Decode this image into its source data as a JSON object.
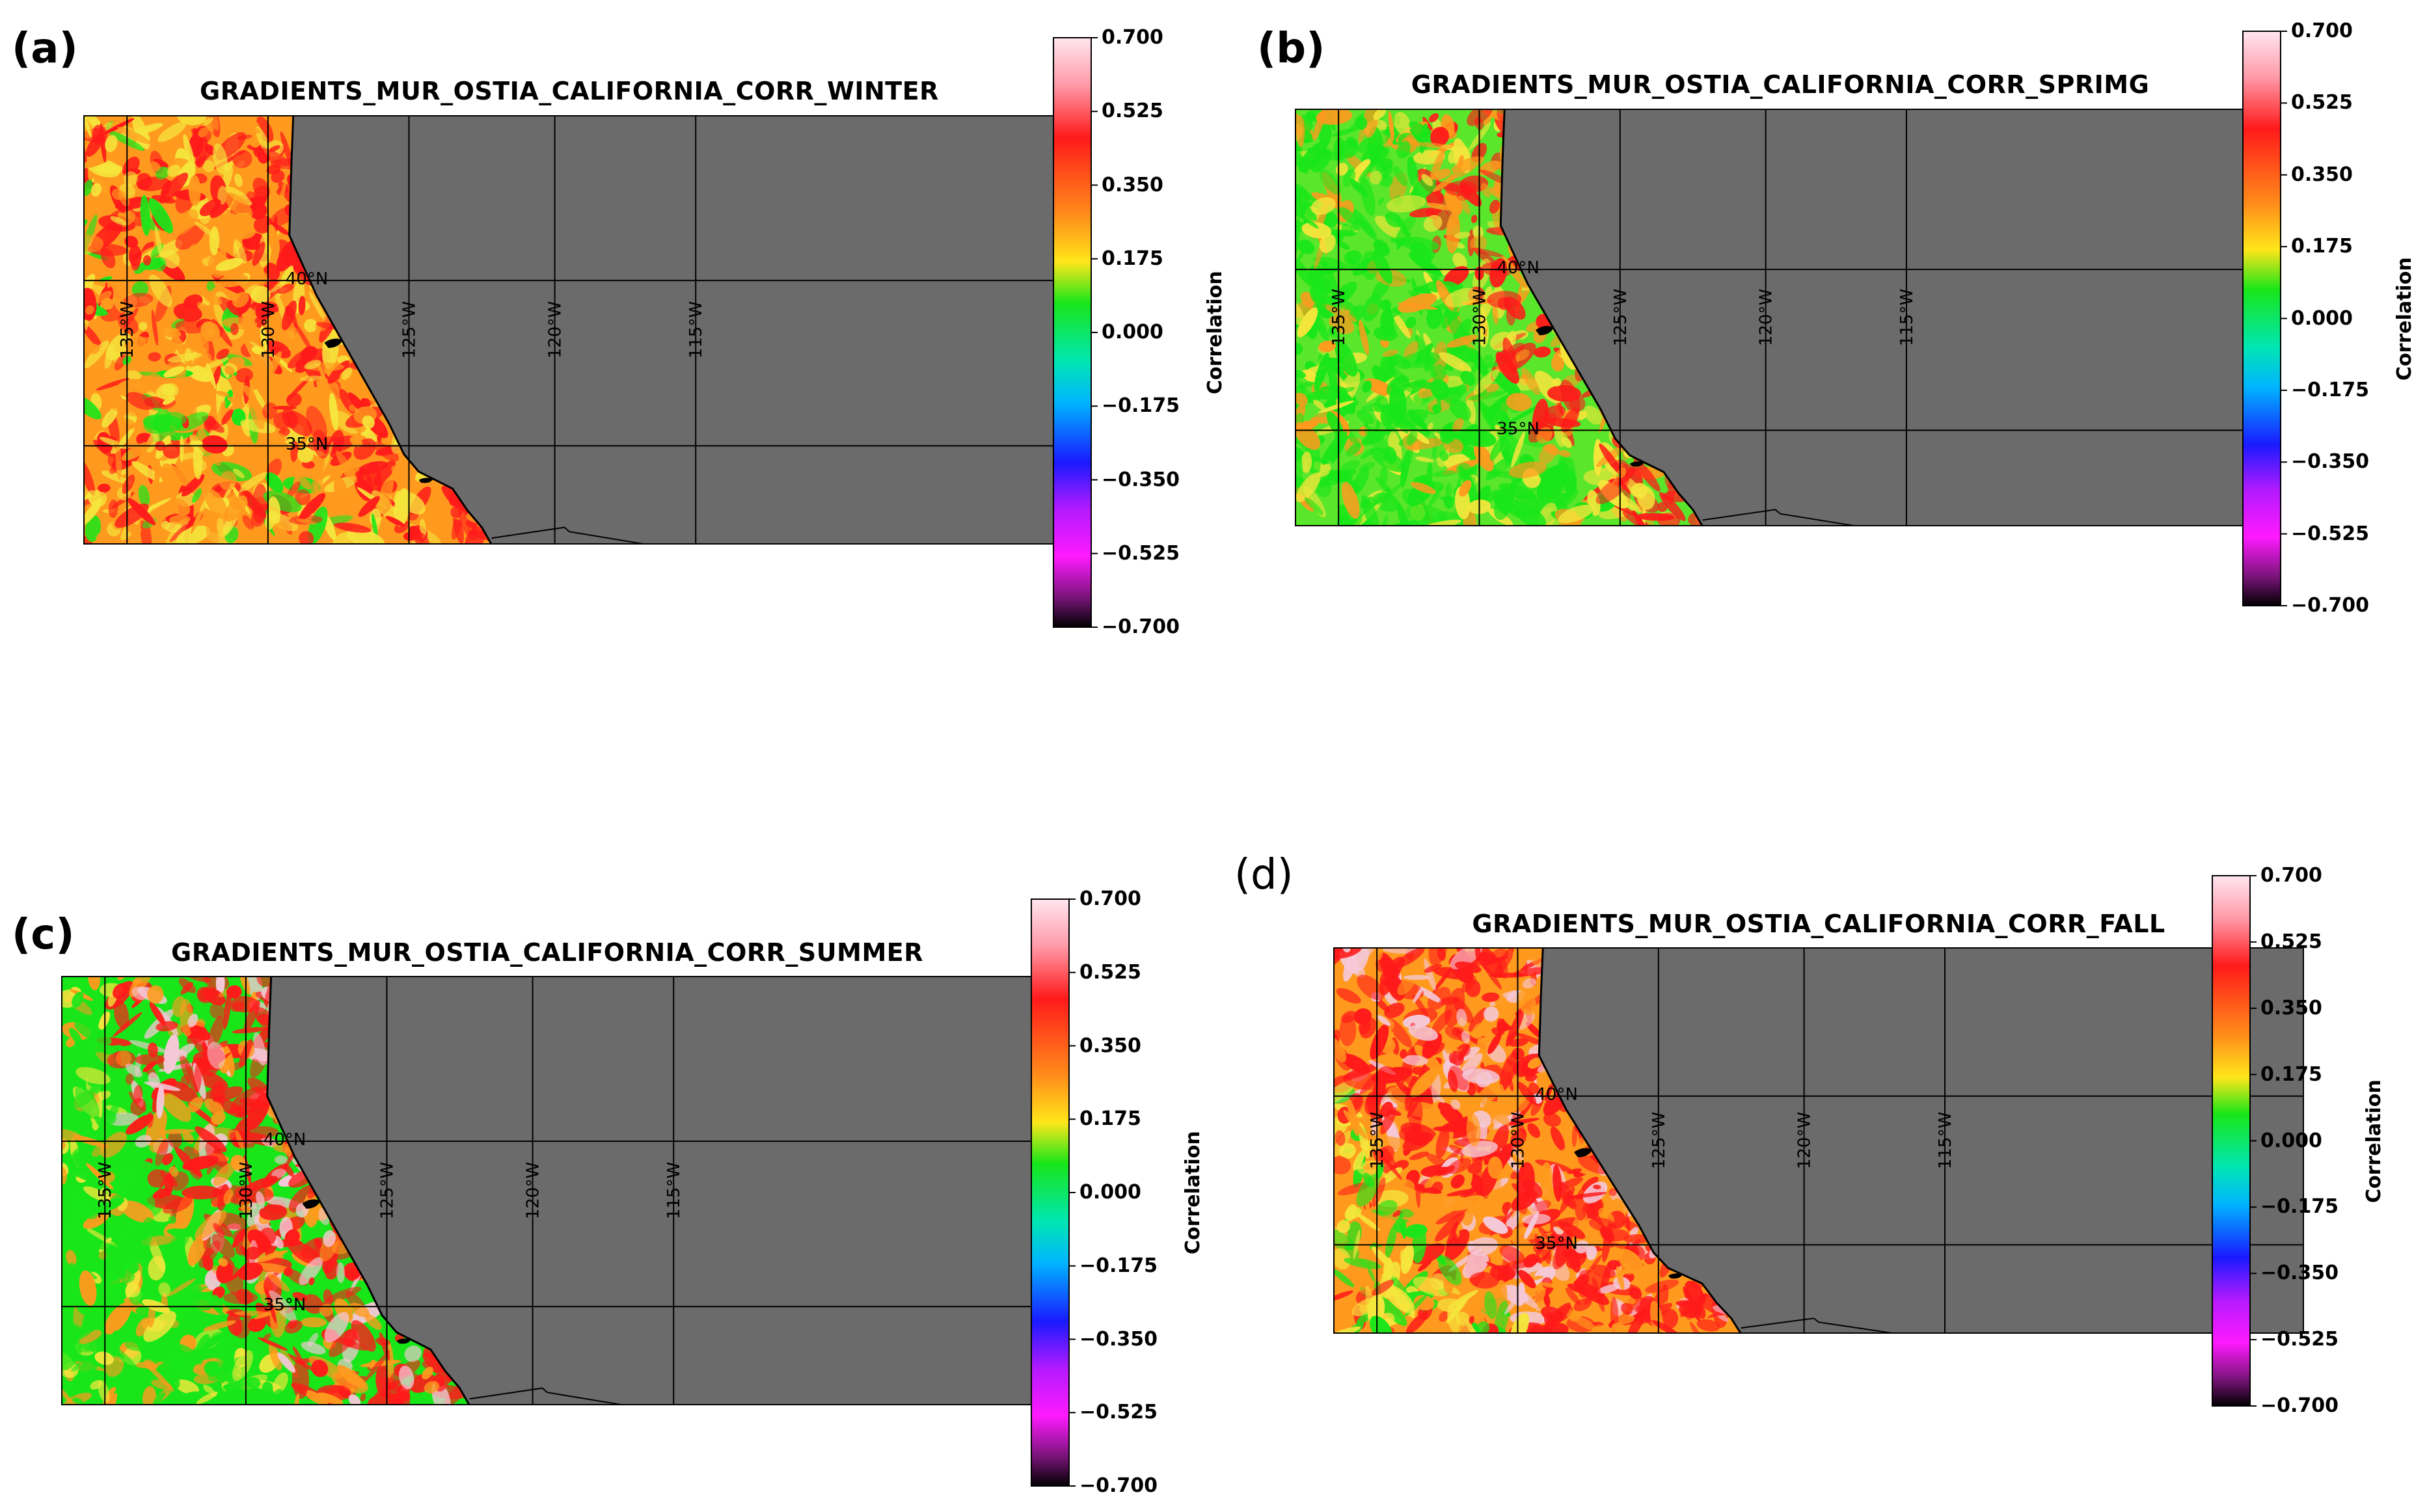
{
  "colorbar": {
    "label": "Correlation",
    "ticks": [
      "0.700",
      "0.525",
      "0.350",
      "0.175",
      "0.000",
      "−0.175",
      "−0.350",
      "−0.525",
      "−0.700"
    ],
    "vmin": -0.7,
    "vmax": 0.7
  },
  "grid_labels": {
    "lon": [
      "135°W",
      "130°W",
      "125°W",
      "120°W",
      "115°W"
    ],
    "lat": [
      "40°N",
      "35°N"
    ]
  },
  "colors": {
    "land": "#6b6b6b",
    "low_corr": "#19e619",
    "mid_corr": "#f5e63c",
    "orange_corr": "#ff9a1e",
    "high_corr": "#ff1a1a",
    "peak_corr": "#f5c8d8"
  },
  "panels": [
    {
      "id": "a",
      "letter": "(a)",
      "title": "GRADIENTS_MUR_OSTIA_CALIFORNIA_CORR_WINTER"
    },
    {
      "id": "b",
      "letter": "(b)",
      "title": "GRADIENTS_MUR_OSTIA_CALIFORNIA_CORR_SPRIMG"
    },
    {
      "id": "c",
      "letter": "(c)",
      "title": "GRADIENTS_MUR_OSTIA_CALIFORNIA_CORR_SUMMER"
    },
    {
      "id": "d",
      "letter": "(d)",
      "title": "GRADIENTS_MUR_OSTIA_CALIFORNIA_CORR_FALL"
    }
  ]
}
